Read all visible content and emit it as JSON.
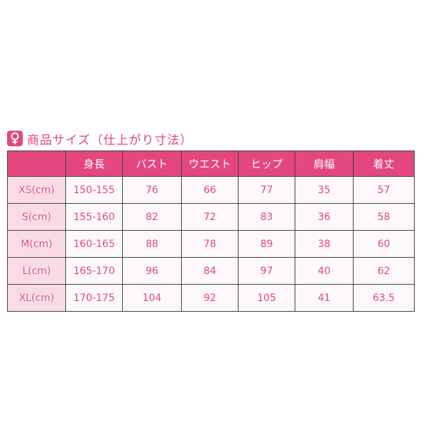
{
  "title": "商品サイズ（仕上がり寸法）",
  "title_icon": "female-symbol-icon",
  "colors": {
    "accent": "#e4477f",
    "label_bg": "#f9dbe3"
  },
  "headers": [
    "",
    "身長",
    "バスト",
    "ウエスト",
    "ヒップ",
    "肩幅",
    "着丈"
  ],
  "rows": [
    [
      "XS(cm)",
      "150-155",
      "76",
      "66",
      "77",
      "35",
      "57"
    ],
    [
      "S(cm)",
      "155-160",
      "82",
      "72",
      "83",
      "36",
      "58"
    ],
    [
      "M(cm)",
      "160-165",
      "88",
      "78",
      "89",
      "38",
      "60"
    ],
    [
      "L(cm)",
      "165-170",
      "96",
      "84",
      "97",
      "40",
      "62"
    ],
    [
      "XL(cm)",
      "170-175",
      "104",
      "92",
      "105",
      "41",
      "63.5"
    ]
  ]
}
